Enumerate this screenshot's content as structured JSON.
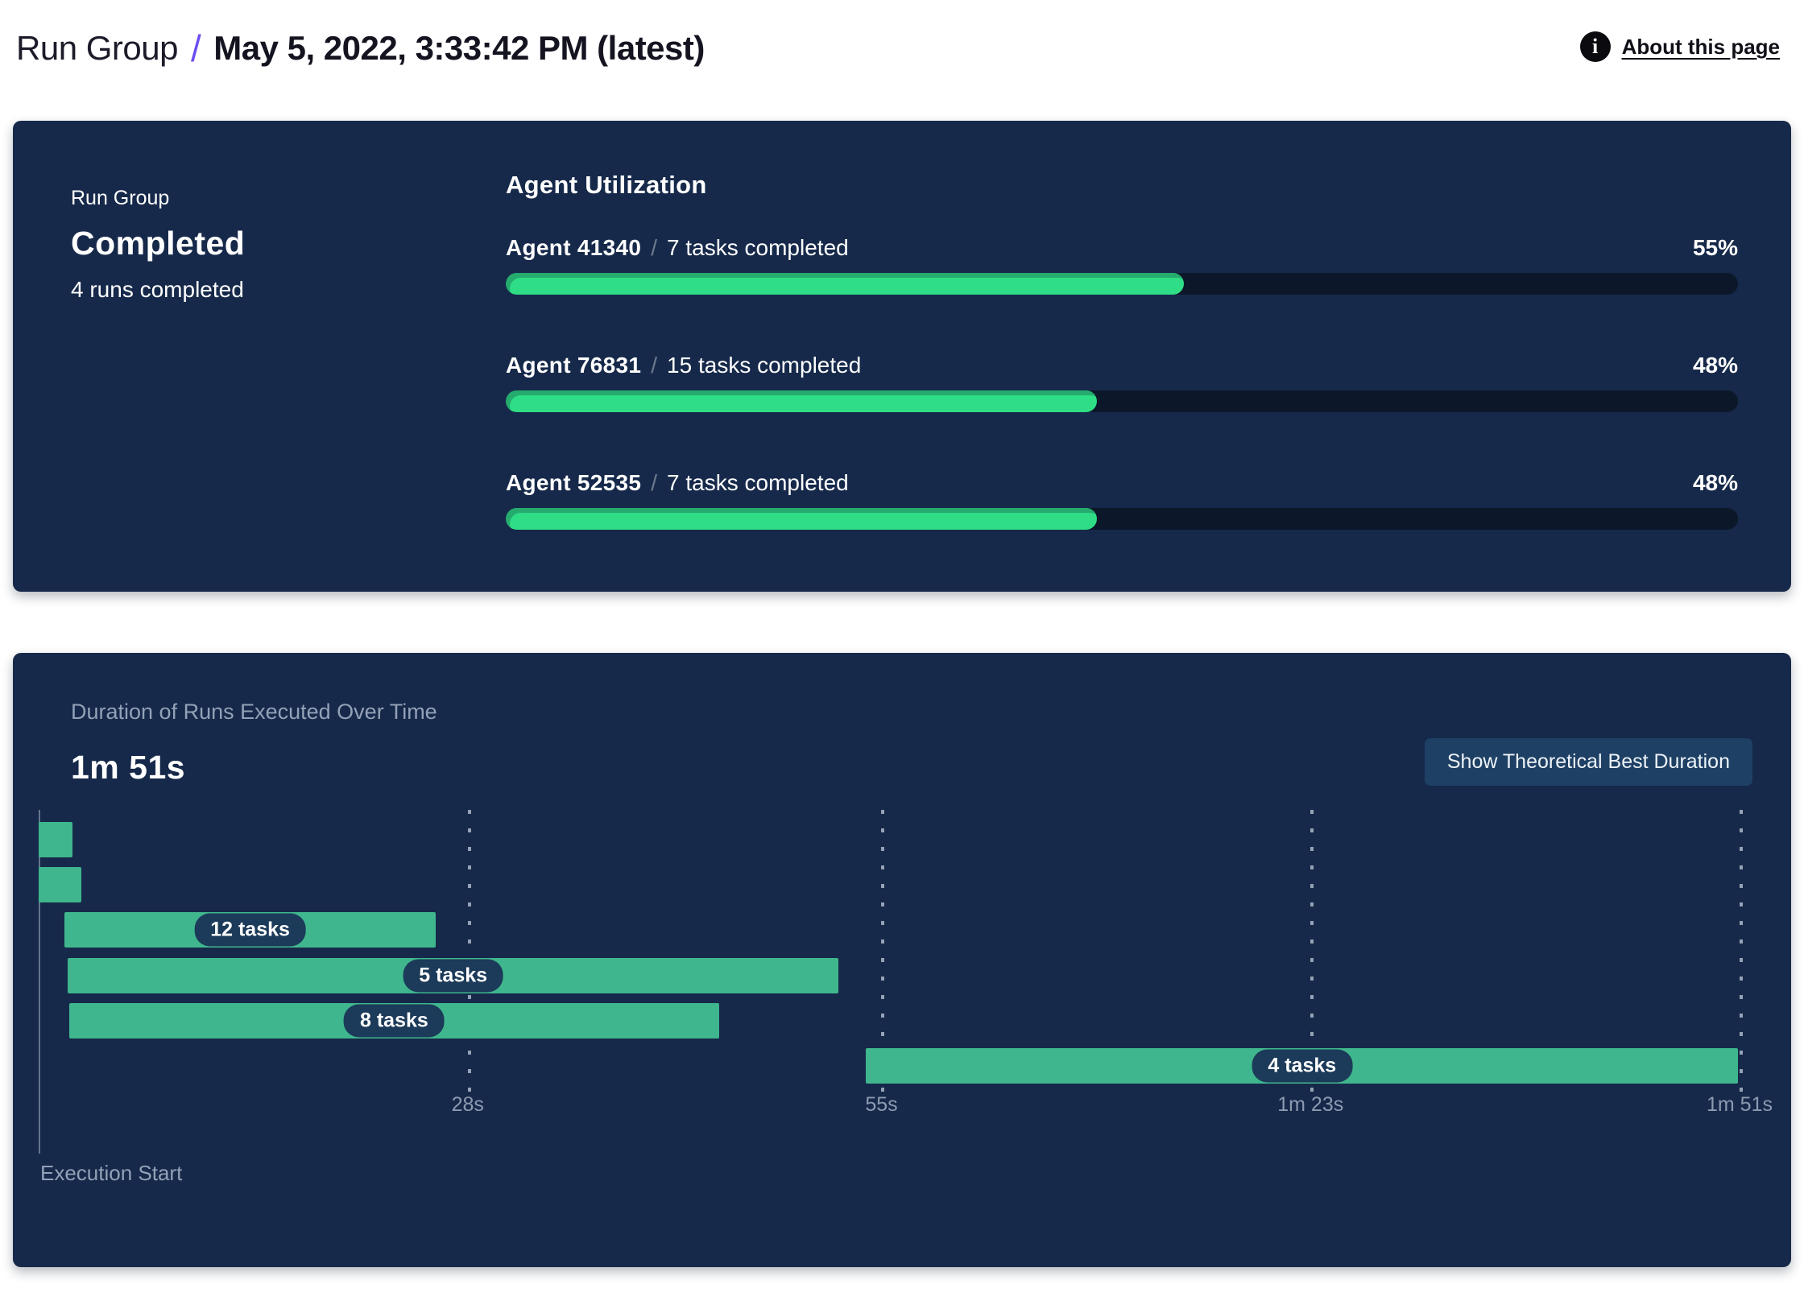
{
  "header": {
    "breadcrumb_root": "Run Group",
    "separator": "/",
    "title": "May 5, 2022, 3:33:42 PM (latest)",
    "about_link": "About this page",
    "info_icon_glyph": "i"
  },
  "summary_card": {
    "label": "Run Group",
    "status": "Completed",
    "subtext": "4 runs completed"
  },
  "agent_utilization": {
    "heading": "Agent Utilization",
    "separator": "/",
    "agents": [
      {
        "name": "Agent 41340",
        "tasks": "7 tasks completed",
        "percent": 55,
        "percent_label": "55%"
      },
      {
        "name": "Agent 76831",
        "tasks": "15 tasks completed",
        "percent": 48,
        "percent_label": "48%"
      },
      {
        "name": "Agent 52535",
        "tasks": "7 tasks completed",
        "percent": 48,
        "percent_label": "48%"
      }
    ]
  },
  "duration_card": {
    "heading": "Duration of Runs Executed Over Time",
    "total_duration": "1m 51s",
    "button_label": "Show Theoretical Best Duration",
    "axis_label": "Execution Start"
  },
  "chart_data": {
    "type": "gantt",
    "title": "Duration of Runs Executed Over Time",
    "xlabel": "Execution Start",
    "xlim": [
      0,
      111
    ],
    "x_ticks": [
      {
        "label": "28s",
        "seconds": 28
      },
      {
        "label": "55s",
        "seconds": 55
      },
      {
        "label": "1m 23s",
        "seconds": 83
      },
      {
        "label": "1m 51s",
        "seconds": 111
      }
    ],
    "rows": [
      {
        "label": "",
        "start_seconds": 0,
        "end_seconds": 2.2
      },
      {
        "label": "",
        "start_seconds": 0,
        "end_seconds": 2.8
      },
      {
        "label": "12 tasks",
        "start_seconds": 1.7,
        "end_seconds": 25.9
      },
      {
        "label": "5 tasks",
        "start_seconds": 1.9,
        "end_seconds": 52.2
      },
      {
        "label": "8 tasks",
        "start_seconds": 2.0,
        "end_seconds": 44.4
      },
      {
        "label": "4 tasks",
        "start_seconds": 54.0,
        "end_seconds": 110.9
      }
    ],
    "grid": "dashed-vertical",
    "legend": "none"
  },
  "colors": {
    "card_background": "#16294a",
    "accent_purple": "#6e4ef2",
    "progress_fill": "#2edd86",
    "progress_fill_shadow": "#25ab6e",
    "progress_track": "#0c1829",
    "gantt_bar": "#3fb68d",
    "pill_background": "#1c3a59",
    "button_background": "#1e4064",
    "muted_text": "#93a1b7",
    "tick_text": "#8d9bb1"
  }
}
